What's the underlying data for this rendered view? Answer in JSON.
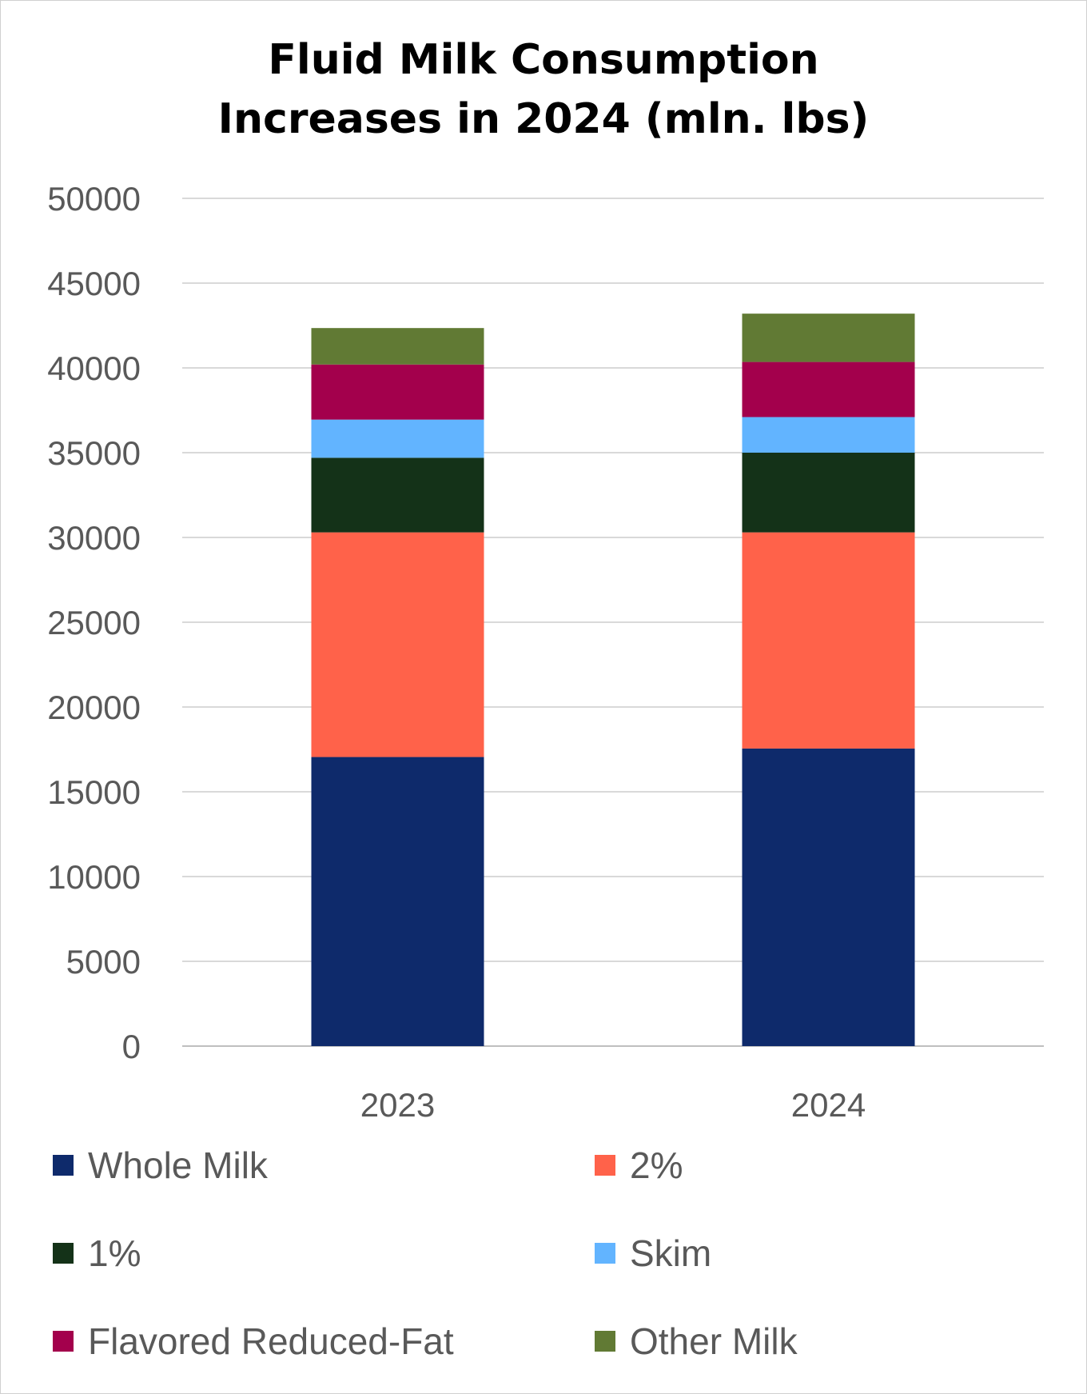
{
  "chart_data": {
    "type": "bar",
    "stacked": true,
    "title": "Fluid Milk Consumption Increases in 2024 (mln. lbs)",
    "title_lines": [
      "Fluid Milk Consumption",
      "Increases in 2024 (mln. lbs)"
    ],
    "categories": [
      "2023",
      "2024"
    ],
    "series": [
      {
        "name": "Whole Milk",
        "color": "#0E2A6B",
        "values": [
          17050,
          17550
        ]
      },
      {
        "name": "2%",
        "color": "#FF624A",
        "values": [
          13250,
          12750
        ]
      },
      {
        "name": "1%",
        "color": "#143218",
        "values": [
          4400,
          4700
        ]
      },
      {
        "name": "Skim",
        "color": "#62B4FF",
        "values": [
          2250,
          2100
        ]
      },
      {
        "name": "Flavored Reduced-Fat",
        "color": "#A3004C",
        "values": [
          3250,
          3250
        ]
      },
      {
        "name": "Other Milk",
        "color": "#617A34",
        "values": [
          2150,
          2850
        ]
      }
    ],
    "ylim": [
      0,
      50000
    ],
    "yticks": [
      0,
      5000,
      10000,
      15000,
      20000,
      25000,
      30000,
      35000,
      40000,
      45000,
      50000
    ],
    "xlabel": "",
    "ylabel": "",
    "grid": true,
    "legend_position": "bottom"
  }
}
